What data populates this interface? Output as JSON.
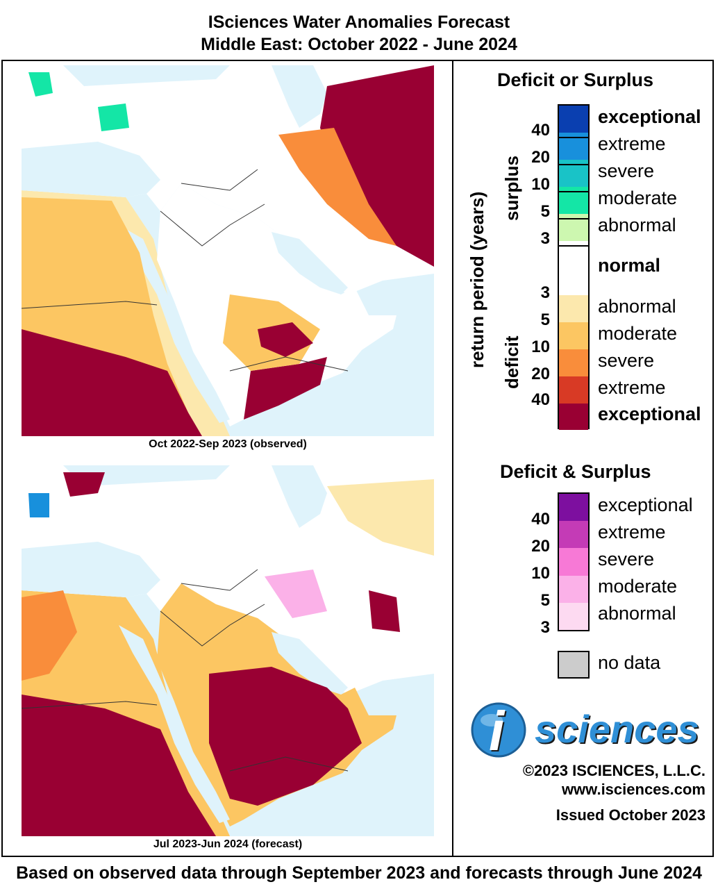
{
  "title": {
    "line1": "ISciences Water Anomalies Forecast",
    "line2": "Middle East: October 2022 - June 2024"
  },
  "maps": [
    {
      "caption": "Oct 2022-Sep 2023 (observed)"
    },
    {
      "caption": "Jul 2023-Jun 2024 (forecast)"
    }
  ],
  "legend": {
    "deficit_or_surplus": {
      "heading": "Deficit or Surplus",
      "axis_label": "return period (years)",
      "surplus_label": "surplus",
      "deficit_label": "deficit",
      "classes": [
        {
          "label": "exceptional",
          "color": "#0a3fb0"
        },
        {
          "label": "extreme",
          "color": "#1890dc"
        },
        {
          "label": "severe",
          "color": "#19c3c7"
        },
        {
          "label": "moderate",
          "color": "#14e6a6"
        },
        {
          "label": "abnormal",
          "color": "#cdf7b0"
        },
        {
          "label": "normal",
          "color": "#ffffff"
        },
        {
          "label": "abnormal",
          "color": "#fce8ad"
        },
        {
          "label": "moderate",
          "color": "#fcc662"
        },
        {
          "label": "severe",
          "color": "#f98d3b"
        },
        {
          "label": "extreme",
          "color": "#d83a25"
        },
        {
          "label": "exceptional",
          "color": "#990033"
        }
      ],
      "surplus_ticks": [
        "40",
        "20",
        "10",
        "5",
        "3"
      ],
      "deficit_ticks": [
        "3",
        "5",
        "10",
        "20",
        "40"
      ]
    },
    "deficit_and_surplus": {
      "heading": "Deficit & Surplus",
      "classes": [
        {
          "label": "exceptional",
          "color": "#7d0f9f"
        },
        {
          "label": "extreme",
          "color": "#c43bb6"
        },
        {
          "label": "severe",
          "color": "#f779d6"
        },
        {
          "label": "moderate",
          "color": "#fbb1e8"
        },
        {
          "label": "abnormal",
          "color": "#fddaf1"
        }
      ],
      "ticks": [
        "40",
        "20",
        "10",
        "5",
        "3"
      ]
    },
    "no_data": {
      "label": "no data",
      "color": "#cccccc"
    }
  },
  "logo": {
    "text": "sciences",
    "letter": "i"
  },
  "copyright": "©2023 ISCIENCES, L.L.C.",
  "website": "www.isciences.com",
  "issued": "Issued October 2023",
  "footer": "Based on observed data through September 2023 and forecasts through June 2024",
  "colors": {
    "water": "#dff3fb",
    "land_normal": "#ffffff",
    "border": "#000000"
  }
}
